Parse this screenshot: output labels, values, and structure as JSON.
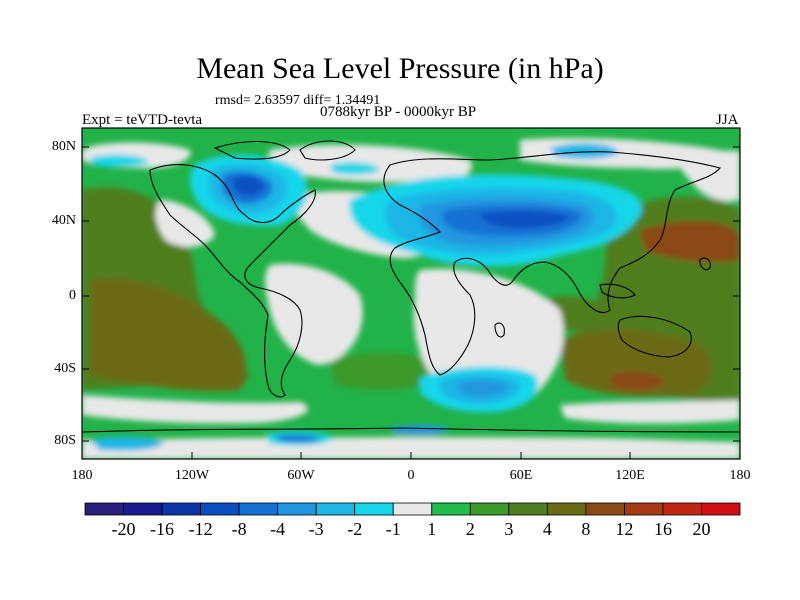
{
  "figure": {
    "title": "Mean Sea Level Pressure (in hPa)",
    "stats": "rmsd= 2.63597 diff= 1.34491",
    "expt": "Expt = teVTD-tevta",
    "subtitle": "0788kyr BP - 0000kyr BP",
    "season": "JJA"
  },
  "axes": {
    "x_ticks": [
      "180",
      "120W",
      "60W",
      "0",
      "60E",
      "120E",
      "180"
    ],
    "y_ticks": [
      "80N",
      "40N",
      "0",
      "40S",
      "80S"
    ]
  },
  "colorbar": {
    "levels": [
      "-20",
      "-16",
      "-12",
      "-8",
      "-4",
      "-3",
      "-2",
      "-1",
      "1",
      "2",
      "3",
      "4",
      "8",
      "12",
      "16",
      "20"
    ],
    "colors": [
      "#2a1f7a",
      "#1a1a8c",
      "#0d35a8",
      "#0a4fbf",
      "#1571d4",
      "#2196df",
      "#1fb6e6",
      "#17d6ea",
      "#e8e8e8",
      "#1fbe4a",
      "#3b9a2a",
      "#4f7d1f",
      "#6b6b17",
      "#8a4a14",
      "#a53a12",
      "#bf2712",
      "#d01010"
    ]
  }
}
